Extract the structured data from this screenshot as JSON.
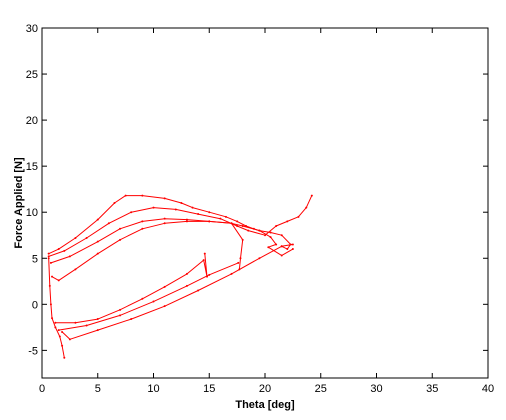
{
  "chart_data": {
    "type": "line",
    "title": "",
    "xlabel": "Theta [deg]",
    "ylabel": "Force Applied [N]",
    "xlim": [
      0,
      40
    ],
    "ylim": [
      -8,
      30
    ],
    "xticks": [
      0,
      5,
      10,
      15,
      20,
      25,
      30,
      35,
      40
    ],
    "yticks": [
      -5,
      0,
      5,
      10,
      15,
      20,
      25,
      30
    ],
    "grid": false,
    "legend": "none",
    "line_color": "#ff0000",
    "series": [
      {
        "values": [
          [
            0.6,
            5.5
          ],
          [
            1.5,
            6.0
          ],
          [
            3.0,
            7.2
          ],
          [
            5.0,
            9.2
          ],
          [
            6.5,
            11.0
          ],
          [
            7.5,
            11.8
          ],
          [
            9.0,
            11.8
          ],
          [
            11.0,
            11.5
          ],
          [
            12.5,
            11.0
          ],
          [
            13.5,
            10.5
          ],
          [
            15.0,
            10.0
          ],
          [
            16.5,
            9.5
          ],
          [
            17.5,
            9.0
          ],
          [
            18.3,
            8.5
          ],
          [
            19.0,
            8.2
          ],
          [
            19.5,
            8.0
          ],
          [
            20.5,
            7.8
          ],
          [
            21.5,
            7.5
          ],
          [
            22.3,
            6.5
          ],
          [
            22.0,
            6.0
          ],
          [
            21.5,
            6.3
          ],
          [
            22.5,
            6.5
          ]
        ]
      },
      {
        "values": [
          [
            0.6,
            5.2
          ],
          [
            2.0,
            5.8
          ],
          [
            4.0,
            7.2
          ],
          [
            6.0,
            8.8
          ],
          [
            8.0,
            10.0
          ],
          [
            10.0,
            10.5
          ],
          [
            12.0,
            10.3
          ],
          [
            14.0,
            9.8
          ],
          [
            16.0,
            9.3
          ],
          [
            17.5,
            8.5
          ],
          [
            18.5,
            8.0
          ],
          [
            20.0,
            7.5
          ],
          [
            21.0,
            8.5
          ],
          [
            22.0,
            9.0
          ],
          [
            23.0,
            9.5
          ],
          [
            23.7,
            10.5
          ],
          [
            24.2,
            11.8
          ]
        ]
      },
      {
        "values": [
          [
            0.8,
            4.5
          ],
          [
            2.5,
            5.2
          ],
          [
            5.0,
            6.8
          ],
          [
            7.0,
            8.2
          ],
          [
            9.0,
            9.0
          ],
          [
            11.0,
            9.3
          ],
          [
            13.0,
            9.2
          ],
          [
            15.0,
            9.0
          ],
          [
            17.0,
            8.8
          ],
          [
            18.0,
            8.5
          ],
          [
            19.5,
            8.0
          ],
          [
            20.5,
            7.3
          ],
          [
            21.0,
            6.5
          ],
          [
            20.3,
            6.2
          ],
          [
            21.5,
            5.3
          ],
          [
            22.5,
            6.0
          ]
        ]
      },
      {
        "values": [
          [
            0.9,
            3.0
          ],
          [
            1.5,
            2.6
          ],
          [
            3.0,
            3.8
          ],
          [
            5.0,
            5.5
          ],
          [
            7.0,
            7.0
          ],
          [
            9.0,
            8.2
          ],
          [
            11.0,
            8.8
          ],
          [
            13.0,
            9.0
          ],
          [
            15.0,
            9.0
          ],
          [
            17.0,
            8.8
          ],
          [
            18.0,
            7.0
          ],
          [
            17.8,
            5.0
          ],
          [
            17.7,
            3.8
          ]
        ]
      },
      {
        "values": [
          [
            0.6,
            5.0
          ],
          [
            0.7,
            2.0
          ],
          [
            0.8,
            0.0
          ],
          [
            0.9,
            -1.5
          ],
          [
            1.2,
            -2.5
          ],
          [
            1.6,
            -3.5
          ],
          [
            1.8,
            -4.5
          ],
          [
            2.0,
            -5.8
          ]
        ]
      },
      {
        "values": [
          [
            1.2,
            -2.0
          ],
          [
            3.0,
            -2.0
          ],
          [
            5.0,
            -1.6
          ],
          [
            7.0,
            -0.6
          ],
          [
            9.0,
            0.6
          ],
          [
            11.0,
            1.9
          ],
          [
            13.0,
            3.3
          ],
          [
            14.5,
            4.8
          ],
          [
            14.8,
            3.0
          ],
          [
            14.6,
            5.5
          ]
        ]
      },
      {
        "values": [
          [
            1.5,
            -2.8
          ],
          [
            4.0,
            -2.3
          ],
          [
            7.0,
            -1.2
          ],
          [
            10.0,
            0.3
          ],
          [
            13.0,
            2.0
          ],
          [
            15.0,
            3.2
          ],
          [
            17.6,
            4.5
          ]
        ]
      },
      {
        "values": [
          [
            1.8,
            -3.0
          ],
          [
            2.5,
            -3.8
          ],
          [
            5.0,
            -2.8
          ],
          [
            8.0,
            -1.6
          ],
          [
            11.0,
            -0.2
          ],
          [
            14.0,
            1.5
          ],
          [
            17.0,
            3.3
          ],
          [
            19.5,
            5.0
          ],
          [
            21.5,
            6.3
          ]
        ]
      }
    ]
  }
}
